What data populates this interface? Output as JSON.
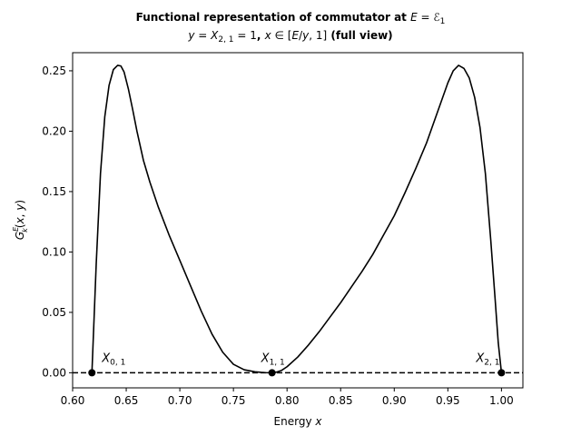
{
  "chart_data": {
    "type": "line",
    "title_line1": "Functional representation of commutator at E = ℰ₁",
    "title_line2": "y = X₂,₁ = 1, x ∈ [E/y, 1] (full view)",
    "xlabel": "Energy x",
    "ylabel": "G_k^E(x, y)",
    "xlim": [
      0.6,
      1.02
    ],
    "ylim": [
      -0.0125,
      0.265
    ],
    "xticks": [
      0.6,
      0.65,
      0.7,
      0.75,
      0.8,
      0.85,
      0.9,
      0.95,
      1.0
    ],
    "xtick_labels": [
      "0.60",
      "0.65",
      "0.70",
      "0.75",
      "0.80",
      "0.85",
      "0.90",
      "0.95",
      "1.00"
    ],
    "yticks": [
      0.0,
      0.05,
      0.1,
      0.15,
      0.2,
      0.25
    ],
    "ytick_labels": [
      "0.00",
      "0.05",
      "0.10",
      "0.15",
      "0.20",
      "0.25"
    ],
    "grid": false,
    "baseline": {
      "y": 0,
      "style": "dashed",
      "color": "#000000"
    },
    "series": [
      {
        "color": "#000000",
        "x": [
          0.618,
          0.622,
          0.626,
          0.63,
          0.634,
          0.638,
          0.642,
          0.645,
          0.648,
          0.652,
          0.656,
          0.66,
          0.666,
          0.672,
          0.68,
          0.69,
          0.7,
          0.71,
          0.72,
          0.73,
          0.74,
          0.75,
          0.76,
          0.77,
          0.776,
          0.78,
          0.784,
          0.786,
          0.79,
          0.795,
          0.8,
          0.81,
          0.82,
          0.83,
          0.84,
          0.85,
          0.86,
          0.87,
          0.88,
          0.89,
          0.9,
          0.91,
          0.92,
          0.93,
          0.94,
          0.95,
          0.955,
          0.96,
          0.965,
          0.97,
          0.975,
          0.98,
          0.985,
          0.99,
          0.994,
          0.997,
          1.0
        ],
        "y": [
          0.0,
          0.09,
          0.165,
          0.212,
          0.238,
          0.251,
          0.2545,
          0.254,
          0.249,
          0.235,
          0.218,
          0.2,
          0.176,
          0.158,
          0.137,
          0.114,
          0.093,
          0.072,
          0.051,
          0.032,
          0.017,
          0.007,
          0.0025,
          0.0008,
          0.0003,
          0.0001,
          0.0,
          0.0,
          0.0005,
          0.002,
          0.005,
          0.013,
          0.023,
          0.034,
          0.046,
          0.058,
          0.071,
          0.084,
          0.098,
          0.114,
          0.13,
          0.149,
          0.169,
          0.19,
          0.215,
          0.24,
          0.25,
          0.2545,
          0.252,
          0.244,
          0.228,
          0.203,
          0.165,
          0.11,
          0.062,
          0.025,
          0.0
        ]
      }
    ],
    "points": [
      {
        "x": 0.618,
        "y": 0,
        "label": "X_{0,1}"
      },
      {
        "x": 0.786,
        "y": 0,
        "label": "X_{1,1}"
      },
      {
        "x": 1.0,
        "y": 0,
        "label": "X_{2,1}"
      }
    ]
  }
}
